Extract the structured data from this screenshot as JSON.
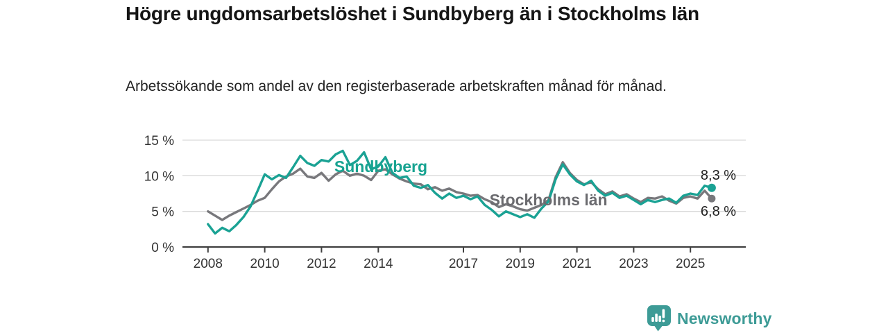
{
  "header": {
    "title": "Högre ungdomsarbetslöshet i Sundbyberg än i Stockholms län",
    "subtitle": "Arbetssökande som andel av den registerbaserade arbetskraften månad för månad."
  },
  "chart_data": {
    "type": "line",
    "unit": "%",
    "grid": "horizontal",
    "legend_position": "inline-labels",
    "xlim": [
      2007.1,
      2026.95
    ],
    "ylim": [
      0,
      15
    ],
    "yticks": [
      {
        "value": 0,
        "label": "0 %"
      },
      {
        "value": 5,
        "label": "5 %"
      },
      {
        "value": 10,
        "label": "10 %"
      },
      {
        "value": 15,
        "label": "15 %"
      }
    ],
    "xticks": [
      {
        "value": 2008,
        "label": "2008"
      },
      {
        "value": 2010,
        "label": "2010"
      },
      {
        "value": 2012,
        "label": "2012"
      },
      {
        "value": 2014,
        "label": "2014"
      },
      {
        "value": 2017,
        "label": "2017"
      },
      {
        "value": 2019,
        "label": "2019"
      },
      {
        "value": 2021,
        "label": "2021"
      },
      {
        "value": 2023,
        "label": "2023"
      },
      {
        "value": 2025,
        "label": "2025"
      }
    ],
    "series": [
      {
        "name": "Stockholms län",
        "color": "#78787c",
        "label_color": "#6b6b6f",
        "end_label": "6,8 %",
        "end_label_position": "below",
        "label_at": {
          "x": 2017.92,
          "y": 5.85
        },
        "points": [
          [
            2008,
            5.0
          ],
          [
            2008.25,
            4.4
          ],
          [
            2008.5,
            3.8
          ],
          [
            2008.75,
            4.4
          ],
          [
            2009,
            4.9
          ],
          [
            2009.25,
            5.4
          ],
          [
            2009.5,
            5.9
          ],
          [
            2009.75,
            6.5
          ],
          [
            2010,
            6.9
          ],
          [
            2010.25,
            8.1
          ],
          [
            2010.5,
            9.2
          ],
          [
            2010.75,
            9.9
          ],
          [
            2011,
            10.3
          ],
          [
            2011.25,
            11.0
          ],
          [
            2011.5,
            9.9
          ],
          [
            2011.75,
            9.7
          ],
          [
            2012,
            10.4
          ],
          [
            2012.25,
            9.3
          ],
          [
            2012.5,
            10.2
          ],
          [
            2012.75,
            10.7
          ],
          [
            2013,
            10.0
          ],
          [
            2013.25,
            10.3
          ],
          [
            2013.5,
            10.0
          ],
          [
            2013.75,
            9.4
          ],
          [
            2014,
            10.7
          ],
          [
            2014.25,
            10.9
          ],
          [
            2014.5,
            10.2
          ],
          [
            2014.75,
            9.6
          ],
          [
            2015,
            9.2
          ],
          [
            2015.25,
            8.9
          ],
          [
            2015.5,
            8.8
          ],
          [
            2015.75,
            8.1
          ],
          [
            2016,
            8.4
          ],
          [
            2016.25,
            7.9
          ],
          [
            2016.5,
            8.2
          ],
          [
            2016.75,
            7.7
          ],
          [
            2017,
            7.5
          ],
          [
            2017.25,
            7.2
          ],
          [
            2017.5,
            7.3
          ],
          [
            2017.75,
            6.7
          ],
          [
            2018,
            6.3
          ],
          [
            2018.25,
            5.6
          ],
          [
            2018.5,
            6.0
          ],
          [
            2018.75,
            5.7
          ],
          [
            2019,
            5.3
          ],
          [
            2019.25,
            5.1
          ],
          [
            2019.5,
            5.5
          ],
          [
            2019.75,
            5.9
          ],
          [
            2020,
            6.6
          ],
          [
            2020.25,
            9.8
          ],
          [
            2020.5,
            11.9
          ],
          [
            2020.75,
            10.4
          ],
          [
            2021,
            9.4
          ],
          [
            2021.25,
            8.8
          ],
          [
            2021.5,
            9.1
          ],
          [
            2021.75,
            8.1
          ],
          [
            2022,
            7.4
          ],
          [
            2022.25,
            7.8
          ],
          [
            2022.5,
            7.1
          ],
          [
            2022.75,
            7.4
          ],
          [
            2023,
            6.8
          ],
          [
            2023.25,
            6.3
          ],
          [
            2023.5,
            6.9
          ],
          [
            2023.75,
            6.8
          ],
          [
            2024,
            7.1
          ],
          [
            2024.25,
            6.5
          ],
          [
            2024.5,
            6.1
          ],
          [
            2024.75,
            6.9
          ],
          [
            2025,
            7.1
          ],
          [
            2025.25,
            6.8
          ],
          [
            2025.5,
            7.9
          ],
          [
            2025.75,
            6.8
          ]
        ]
      },
      {
        "name": "Sundbyberg",
        "color": "#1aa294",
        "label_color": "#17a391",
        "end_label": "8,3 %",
        "end_label_position": "above",
        "label_at": {
          "x": 2012.45,
          "y": 10.5
        },
        "points": [
          [
            2008,
            3.2
          ],
          [
            2008.25,
            1.9
          ],
          [
            2008.5,
            2.7
          ],
          [
            2008.75,
            2.2
          ],
          [
            2009,
            3.1
          ],
          [
            2009.25,
            4.2
          ],
          [
            2009.5,
            5.7
          ],
          [
            2009.75,
            7.9
          ],
          [
            2010,
            10.2
          ],
          [
            2010.25,
            9.5
          ],
          [
            2010.5,
            10.1
          ],
          [
            2010.75,
            9.7
          ],
          [
            2011,
            11.2
          ],
          [
            2011.25,
            12.8
          ],
          [
            2011.5,
            11.8
          ],
          [
            2011.75,
            11.4
          ],
          [
            2012,
            12.2
          ],
          [
            2012.25,
            12.0
          ],
          [
            2012.5,
            13.0
          ],
          [
            2012.75,
            13.5
          ],
          [
            2013,
            11.5
          ],
          [
            2013.25,
            12.1
          ],
          [
            2013.5,
            13.3
          ],
          [
            2013.75,
            10.9
          ],
          [
            2014,
            11.3
          ],
          [
            2014.25,
            12.6
          ],
          [
            2014.5,
            10.4
          ],
          [
            2014.75,
            9.7
          ],
          [
            2015,
            9.9
          ],
          [
            2015.25,
            8.6
          ],
          [
            2015.5,
            8.3
          ],
          [
            2015.75,
            8.7
          ],
          [
            2016,
            7.6
          ],
          [
            2016.25,
            6.8
          ],
          [
            2016.5,
            7.5
          ],
          [
            2016.75,
            6.9
          ],
          [
            2017,
            7.2
          ],
          [
            2017.25,
            6.7
          ],
          [
            2017.5,
            7.1
          ],
          [
            2017.75,
            5.9
          ],
          [
            2018,
            5.2
          ],
          [
            2018.25,
            4.3
          ],
          [
            2018.5,
            5.0
          ],
          [
            2018.75,
            4.6
          ],
          [
            2019,
            4.2
          ],
          [
            2019.25,
            4.6
          ],
          [
            2019.5,
            4.1
          ],
          [
            2019.75,
            5.4
          ],
          [
            2020,
            6.4
          ],
          [
            2020.25,
            9.5
          ],
          [
            2020.5,
            11.6
          ],
          [
            2020.75,
            10.2
          ],
          [
            2021,
            9.2
          ],
          [
            2021.25,
            8.7
          ],
          [
            2021.5,
            9.3
          ],
          [
            2021.75,
            7.9
          ],
          [
            2022,
            7.2
          ],
          [
            2022.25,
            7.6
          ],
          [
            2022.5,
            6.9
          ],
          [
            2022.75,
            7.2
          ],
          [
            2023,
            6.6
          ],
          [
            2023.25,
            6.0
          ],
          [
            2023.5,
            6.6
          ],
          [
            2023.75,
            6.3
          ],
          [
            2024,
            6.6
          ],
          [
            2024.25,
            6.8
          ],
          [
            2024.5,
            6.2
          ],
          [
            2024.75,
            7.2
          ],
          [
            2025,
            7.5
          ],
          [
            2025.25,
            7.3
          ],
          [
            2025.5,
            8.6
          ],
          [
            2025.75,
            8.3
          ]
        ]
      }
    ]
  },
  "footer": {
    "brand": "Newsworthy",
    "brand_color": "#3d9b96"
  },
  "colors": {
    "accent_teal": "#1aa294",
    "line_gray": "#78787c",
    "grid": "#d9d9d9",
    "axis": "#3f3f3f",
    "tick_text": "#333333"
  }
}
